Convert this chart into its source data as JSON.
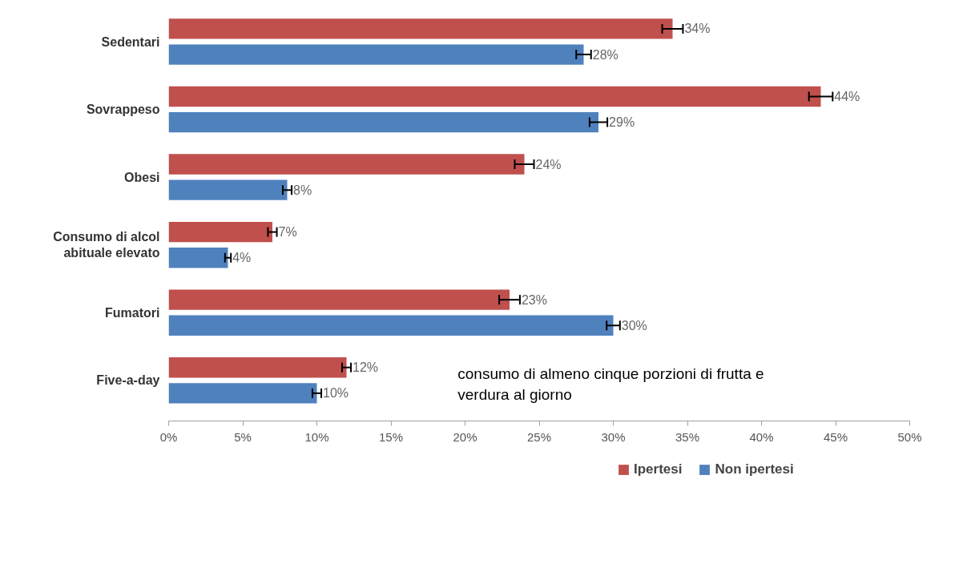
{
  "chart_data": {
    "type": "bar",
    "orientation": "horizontal",
    "categories": [
      "Sedentari",
      "Sovrappeso",
      "Obesi",
      "Consumo di alcol\nabituale elevato",
      "Fumatori",
      "Five-a-day"
    ],
    "series": [
      {
        "name": "Ipertesi",
        "color": "#c0504d",
        "values": [
          34,
          44,
          24,
          7,
          23,
          12
        ],
        "errors": [
          0.7,
          0.8,
          0.65,
          0.3,
          0.7,
          0.3
        ],
        "value_labels": [
          "34%",
          "44%",
          "24%",
          "7%",
          "23%",
          "12%"
        ]
      },
      {
        "name": "Non ipertesi",
        "color": "#4f81bd",
        "values": [
          28,
          29,
          8,
          4,
          30,
          10
        ],
        "errors": [
          0.5,
          0.6,
          0.3,
          0.2,
          0.45,
          0.3
        ],
        "value_labels": [
          "28%",
          "29%",
          "8%",
          "4%",
          "30%",
          "10%"
        ]
      }
    ],
    "xlim": [
      0,
      50
    ],
    "xticks": [
      {
        "value": 0,
        "label": "0%"
      },
      {
        "value": 5,
        "label": "5%"
      },
      {
        "value": 10,
        "label": "10%"
      },
      {
        "value": 15,
        "label": "15%"
      },
      {
        "value": 20,
        "label": "20%"
      },
      {
        "value": 25,
        "label": "25%"
      },
      {
        "value": 30,
        "label": "30%"
      },
      {
        "value": 35,
        "label": "35%"
      },
      {
        "value": 40,
        "label": "40%"
      },
      {
        "value": 45,
        "label": "45%"
      },
      {
        "value": 50,
        "label": "50%"
      }
    ],
    "annotations": [
      "consumo di almeno cinque porzioni di frutta e verdura al giorno"
    ],
    "grid": false,
    "legend": "bottom"
  }
}
